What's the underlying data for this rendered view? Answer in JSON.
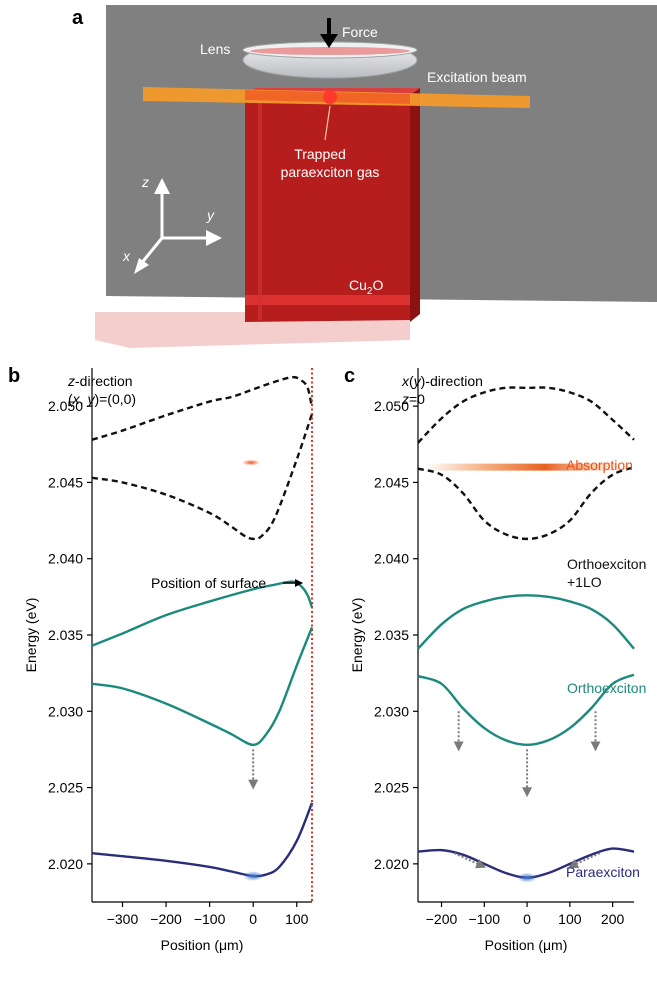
{
  "panel_a": {
    "label": "a",
    "force": "Force",
    "lens": "Lens",
    "excitation_beam": "Excitation beam",
    "trapped_line1": "Trapped",
    "trapped_line2": "paraexciton gas",
    "axis_z": "z",
    "axis_y": "y",
    "axis_x": "x",
    "crystal_cu": "Cu",
    "crystal_sub": "2",
    "crystal_o": "O",
    "colors": {
      "background": "#7f7f7f",
      "crystal": "#b81c1c",
      "beam": "#f39a2b",
      "lens": "#d9dcdf"
    }
  },
  "panel_b": {
    "label": "b",
    "header_line1_italic": "z",
    "header_line1_rest": "-direction",
    "header_line2_prefix": "(",
    "header_line2_x": "x",
    "header_line2_comma": ", ",
    "header_line2_y": "y",
    "header_line2_rest": ")=(0,0)",
    "surface_label": "Position of surface"
  },
  "panel_c": {
    "label": "c",
    "header_line1_italic_x": "x",
    "header_line1_paren_open": "(",
    "header_line1_italic_y": "y",
    "header_line1_rest": ")-direction",
    "header_line2_italic": "z",
    "header_line2_rest": "=0",
    "absorption": "Absorption",
    "orthoexciton_lo_line1": "Orthoexciton",
    "orthoexciton_lo_line2": "+1LO",
    "orthoexciton": "Orthoexciton",
    "paraexciton": "Paraexciton"
  },
  "chart_data": [
    {
      "type": "line",
      "panel": "b",
      "xlabel": "Position (μm)",
      "ylabel": "Energy (eV)",
      "xlim": [
        -370,
        135
      ],
      "ylim": [
        2.0175,
        2.0525
      ],
      "xticks": [
        -300,
        -200,
        -100,
        0,
        100
      ],
      "xtick_labels": [
        "−300",
        "−200",
        "−100",
        "0",
        "100"
      ],
      "yticks": [
        2.02,
        2.025,
        2.03,
        2.035,
        2.04,
        2.045,
        2.05
      ],
      "ytick_labels": [
        "2.020",
        "2.025",
        "2.030",
        "2.035",
        "2.040",
        "2.045",
        "2.050"
      ],
      "surface_position": 135,
      "absorption_spot": {
        "x": -5,
        "y": 2.0463
      },
      "series": [
        {
          "style": "dashed",
          "color": "#111111",
          "points": [
            [
              -370,
              2.0478
            ],
            [
              -300,
              2.0484
            ],
            [
              -200,
              2.0494
            ],
            [
              -100,
              2.0503
            ],
            [
              -50,
              2.0506
            ],
            [
              0,
              2.0511
            ],
            [
              50,
              2.0516
            ],
            [
              90,
              2.0519
            ],
            [
              110,
              2.0517
            ],
            [
              125,
              2.0512
            ],
            [
              135,
              2.0499
            ]
          ]
        },
        {
          "style": "dashed",
          "color": "#111111",
          "points": [
            [
              -370,
              2.0453
            ],
            [
              -300,
              2.045
            ],
            [
              -200,
              2.0442
            ],
            [
              -100,
              2.043
            ],
            [
              -50,
              2.0421
            ],
            [
              -20,
              2.0415
            ],
            [
              0,
              2.0413
            ],
            [
              20,
              2.0415
            ],
            [
              50,
              2.0427
            ],
            [
              100,
              2.0465
            ],
            [
              135,
              2.0495
            ]
          ]
        },
        {
          "style": "solid",
          "color": "#1b8a7c",
          "points": [
            [
              -370,
              2.0343
            ],
            [
              -300,
              2.0351
            ],
            [
              -200,
              2.0363
            ],
            [
              -100,
              2.0372
            ],
            [
              0,
              2.038
            ],
            [
              50,
              2.0383
            ],
            [
              90,
              2.0385
            ],
            [
              110,
              2.0382
            ],
            [
              125,
              2.0376
            ],
            [
              135,
              2.0368
            ]
          ]
        },
        {
          "style": "solid",
          "color": "#1b8a7c",
          "points": [
            [
              -370,
              2.0318
            ],
            [
              -300,
              2.0315
            ],
            [
              -200,
              2.0305
            ],
            [
              -100,
              2.0292
            ],
            [
              -50,
              2.0285
            ],
            [
              0,
              2.0278
            ],
            [
              30,
              2.0285
            ],
            [
              60,
              2.03
            ],
            [
              100,
              2.033
            ],
            [
              135,
              2.0355
            ]
          ]
        },
        {
          "style": "solid",
          "color": "#2c2d7a",
          "points": [
            [
              -370,
              2.0207
            ],
            [
              -300,
              2.0205
            ],
            [
              -200,
              2.0202
            ],
            [
              -100,
              2.0198
            ],
            [
              -50,
              2.0195
            ],
            [
              0,
              2.0192
            ],
            [
              30,
              2.0193
            ],
            [
              60,
              2.0198
            ],
            [
              100,
              2.0215
            ],
            [
              135,
              2.024
            ]
          ]
        }
      ],
      "arrows": [
        {
          "x": 0,
          "from": 2.0275,
          "to": 2.025
        }
      ]
    },
    {
      "type": "line",
      "panel": "c",
      "xlabel": "Position (μm)",
      "ylabel": "Energy (eV)",
      "xlim": [
        -255,
        250
      ],
      "ylim": [
        2.0175,
        2.0525
      ],
      "xticks": [
        -200,
        -100,
        0,
        100,
        200
      ],
      "xtick_labels": [
        "−200",
        "−100",
        "0",
        "100",
        "200"
      ],
      "yticks": [
        2.02,
        2.025,
        2.03,
        2.035,
        2.04,
        2.045,
        2.05
      ],
      "ytick_labels": [
        "2.020",
        "2.025",
        "2.030",
        "2.035",
        "2.040",
        "2.045",
        "2.050"
      ],
      "absorption_band": {
        "y": 2.046,
        "x_from": -240,
        "x_to": 230
      },
      "series": [
        {
          "style": "dashed",
          "color": "#111111",
          "points": [
            [
              -255,
              2.0476
            ],
            [
              -200,
              2.0492
            ],
            [
              -150,
              2.0503
            ],
            [
              -100,
              2.0509
            ],
            [
              -50,
              2.0512
            ],
            [
              0,
              2.0512
            ],
            [
              50,
              2.0512
            ],
            [
              100,
              2.0509
            ],
            [
              150,
              2.0503
            ],
            [
              200,
              2.0491
            ],
            [
              250,
              2.0478
            ]
          ]
        },
        {
          "style": "dashed",
          "color": "#111111",
          "points": [
            [
              -255,
              2.0459
            ],
            [
              -200,
              2.0455
            ],
            [
              -150,
              2.0443
            ],
            [
              -100,
              2.0425
            ],
            [
              -50,
              2.0416
            ],
            [
              0,
              2.0413
            ],
            [
              50,
              2.0416
            ],
            [
              100,
              2.0425
            ],
            [
              150,
              2.0443
            ],
            [
              200,
              2.0455
            ],
            [
              250,
              2.046
            ]
          ]
        },
        {
          "style": "solid",
          "color": "#1b8a7c",
          "points": [
            [
              -255,
              2.0341
            ],
            [
              -200,
              2.0357
            ],
            [
              -150,
              2.0367
            ],
            [
              -100,
              2.0372
            ],
            [
              -50,
              2.0375
            ],
            [
              0,
              2.0376
            ],
            [
              50,
              2.0375
            ],
            [
              100,
              2.0372
            ],
            [
              150,
              2.0367
            ],
            [
              200,
              2.0357
            ],
            [
              250,
              2.0341
            ]
          ]
        },
        {
          "style": "solid",
          "color": "#1b8a7c",
          "points": [
            [
              -255,
              2.0323
            ],
            [
              -200,
              2.0318
            ],
            [
              -150,
              2.0302
            ],
            [
              -100,
              2.0289
            ],
            [
              -50,
              2.0281
            ],
            [
              0,
              2.0278
            ],
            [
              50,
              2.0281
            ],
            [
              100,
              2.0289
            ],
            [
              150,
              2.0302
            ],
            [
              200,
              2.0318
            ],
            [
              250,
              2.0324
            ]
          ]
        },
        {
          "style": "solid",
          "color": "#2c2d7a",
          "points": [
            [
              -255,
              2.0208
            ],
            [
              -200,
              2.0209
            ],
            [
              -150,
              2.0206
            ],
            [
              -100,
              2.02
            ],
            [
              -50,
              2.0194
            ],
            [
              0,
              2.0191
            ],
            [
              50,
              2.0194
            ],
            [
              100,
              2.02
            ],
            [
              150,
              2.0206
            ],
            [
              200,
              2.021
            ],
            [
              250,
              2.0208
            ]
          ]
        }
      ],
      "arrows": [
        {
          "x": -160,
          "from": 2.03,
          "to": 2.0275
        },
        {
          "x": 0,
          "from": 2.0275,
          "to": 2.0245
        },
        {
          "x": 160,
          "from": 2.03,
          "to": 2.0275
        }
      ],
      "diag_arrows": [
        {
          "x_from": -170,
          "y_from": 2.0207,
          "x_to": -100,
          "y_to": 2.0198
        },
        {
          "x_from": 170,
          "y_from": 2.0207,
          "x_to": 100,
          "y_to": 2.0198
        }
      ]
    }
  ]
}
